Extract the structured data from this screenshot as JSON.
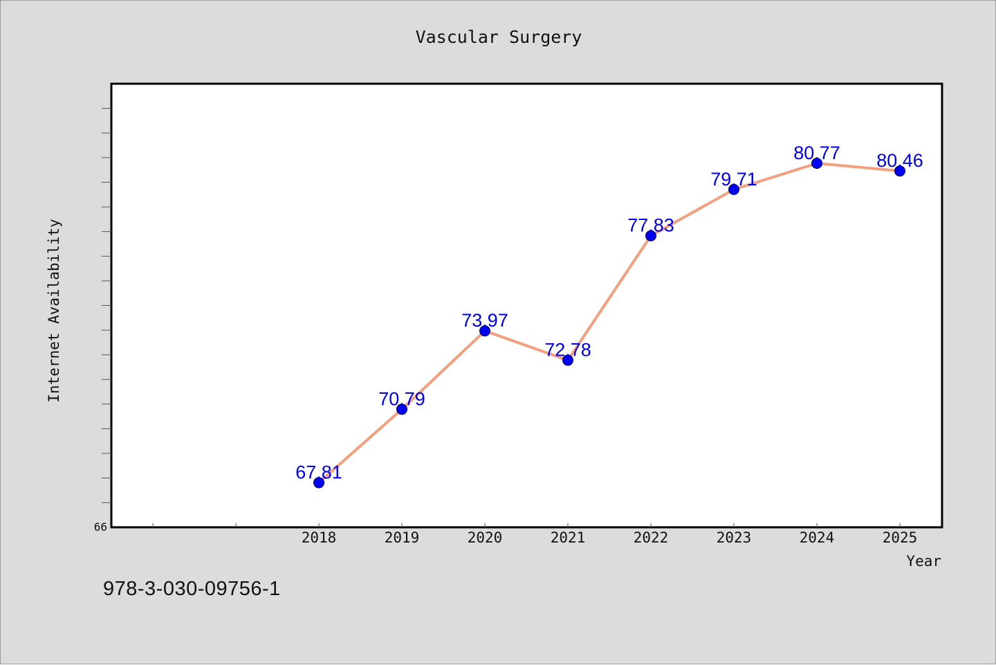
{
  "chart_data": {
    "type": "line",
    "title": "Vascular Surgery",
    "xlabel": "Year",
    "ylabel": "Internet Availability",
    "categories": [
      "2018",
      "2019",
      "2020",
      "2021",
      "2022",
      "2023",
      "2024",
      "2025"
    ],
    "series": [
      {
        "values": [
          67.81,
          70.79,
          73.97,
          72.78,
          77.83,
          79.71,
          80.77,
          80.46
        ],
        "labels": [
          "67.81",
          "70.79",
          "73.97",
          "72.78",
          "77.83",
          "79.71",
          "80.77",
          "80.46"
        ]
      }
    ],
    "ylim": [
      66,
      84
    ],
    "y_tick_labels": [
      "66"
    ],
    "grid": false,
    "legend": "none",
    "colors": {
      "line": "#f4a07e",
      "marker": "#0000ee",
      "data_label": "#0000ee",
      "plot_background": "#ffffff",
      "figure_background": "#dcdcdc"
    }
  },
  "footer": {
    "isbn": "978-3-030-09756-1"
  }
}
